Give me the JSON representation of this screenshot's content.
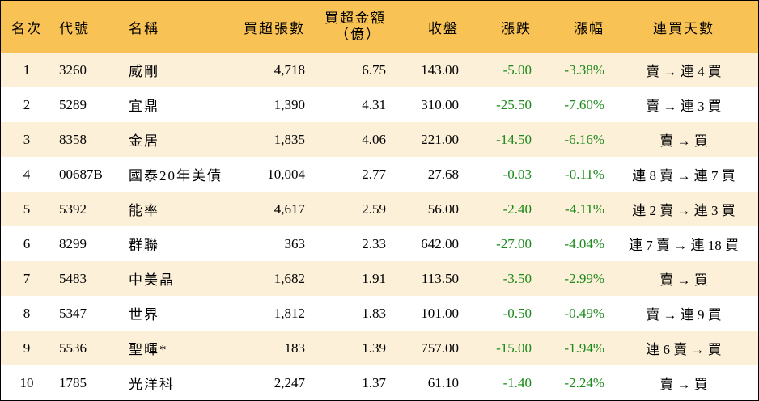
{
  "header": {
    "rank": "名次",
    "code": "代號",
    "name": "名稱",
    "net_buy_lots": "買超張數",
    "net_buy_amount_line1": "買超金額",
    "net_buy_amount_line2": "（億）",
    "close": "收盤",
    "change": "漲跌",
    "change_pct": "漲幅",
    "streak": "連買天數"
  },
  "rows": [
    {
      "rank": "1",
      "code": "3260",
      "name": "威剛",
      "lots": "4,718",
      "amount": "6.75",
      "close": "143.00",
      "change": "-5.00",
      "pct": "-3.38%",
      "streak": "賣 → 連 4 買"
    },
    {
      "rank": "2",
      "code": "5289",
      "name": "宜鼎",
      "lots": "1,390",
      "amount": "4.31",
      "close": "310.00",
      "change": "-25.50",
      "pct": "-7.60%",
      "streak": "賣 → 連 3 買"
    },
    {
      "rank": "3",
      "code": "8358",
      "name": "金居",
      "lots": "1,835",
      "amount": "4.06",
      "close": "221.00",
      "change": "-14.50",
      "pct": "-6.16%",
      "streak": "賣 → 買"
    },
    {
      "rank": "4",
      "code": "00687B",
      "name": "國泰20年美債",
      "lots": "10,004",
      "amount": "2.77",
      "close": "27.68",
      "change": "-0.03",
      "pct": "-0.11%",
      "streak": "連 8 賣 → 連 7 買"
    },
    {
      "rank": "5",
      "code": "5392",
      "name": "能率",
      "lots": "4,617",
      "amount": "2.59",
      "close": "56.00",
      "change": "-2.40",
      "pct": "-4.11%",
      "streak": "連 2 賣 → 連 3 買"
    },
    {
      "rank": "6",
      "code": "8299",
      "name": "群聯",
      "lots": "363",
      "amount": "2.33",
      "close": "642.00",
      "change": "-27.00",
      "pct": "-4.04%",
      "streak": "連 7 賣 → 連 18 買"
    },
    {
      "rank": "7",
      "code": "5483",
      "name": "中美晶",
      "lots": "1,682",
      "amount": "1.91",
      "close": "113.50",
      "change": "-3.50",
      "pct": "-2.99%",
      "streak": "賣 → 買"
    },
    {
      "rank": "8",
      "code": "5347",
      "name": "世界",
      "lots": "1,812",
      "amount": "1.83",
      "close": "101.00",
      "change": "-0.50",
      "pct": "-0.49%",
      "streak": "賣 → 連 9 買"
    },
    {
      "rank": "9",
      "code": "5536",
      "name": "聖暉*",
      "lots": "183",
      "amount": "1.39",
      "close": "757.00",
      "change": "-15.00",
      "pct": "-1.94%",
      "streak": "連 6 賣 → 買"
    },
    {
      "rank": "10",
      "code": "1785",
      "name": "光洋科",
      "lots": "2,247",
      "amount": "1.37",
      "close": "61.10",
      "change": "-1.40",
      "pct": "-2.24%",
      "streak": "賣 → 買"
    }
  ],
  "colors": {
    "header_bg": "#f9c255",
    "odd_row_bg": "#fdf0d8",
    "even_row_bg": "#ffffff",
    "negative_change": "#1a8a1a"
  }
}
